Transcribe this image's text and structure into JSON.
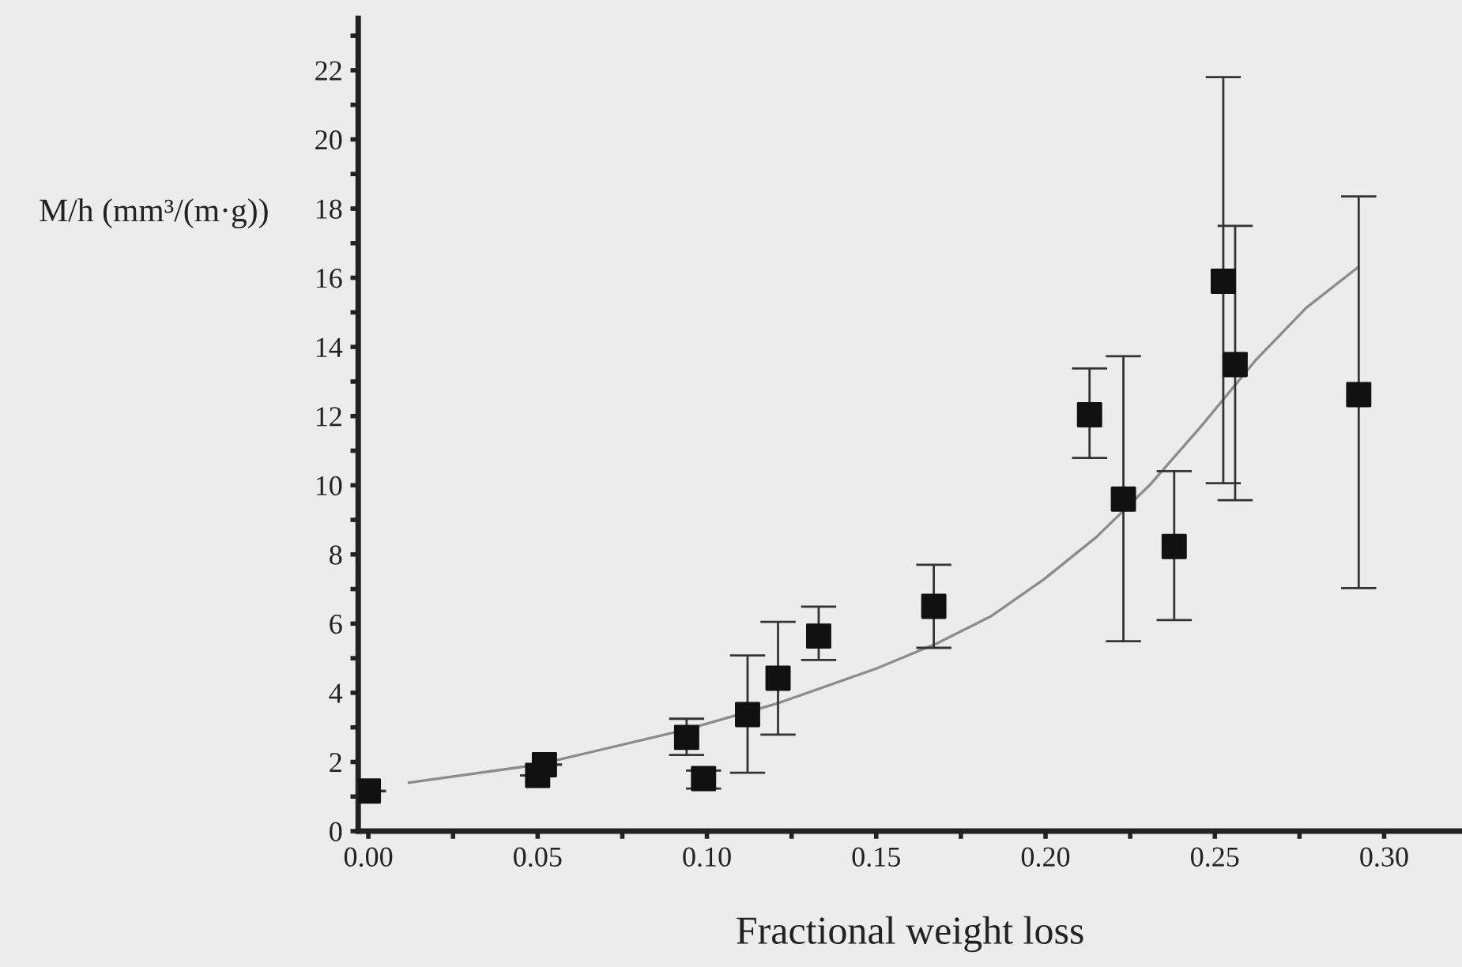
{
  "chart_data": {
    "type": "scatter",
    "xlabel": "Fractional weight loss",
    "ylabel": "M/h (mm³/(m·g))",
    "xlim": [
      -0.003,
      0.323
    ],
    "ylim": [
      0,
      23.5
    ],
    "xticks": [
      {
        "value": 0,
        "label": "0.00"
      },
      {
        "value": 0.025,
        "label": null
      },
      {
        "value": 0.05,
        "label": "0.05"
      },
      {
        "value": 0.075,
        "label": null
      },
      {
        "value": 0.1,
        "label": "0.10"
      },
      {
        "value": 0.125,
        "label": null
      },
      {
        "value": 0.15,
        "label": "0.15"
      },
      {
        "value": 0.175,
        "label": null
      },
      {
        "value": 0.2,
        "label": "0.20"
      },
      {
        "value": 0.225,
        "label": null
      },
      {
        "value": 0.25,
        "label": "0.25"
      },
      {
        "value": 0.275,
        "label": null
      },
      {
        "value": 0.3,
        "label": "0.30"
      }
    ],
    "yticks": [
      0,
      {
        "value": 1,
        "label": null
      },
      2,
      {
        "value": 3,
        "label": null
      },
      4,
      {
        "value": 5,
        "label": null
      },
      6,
      {
        "value": 7,
        "label": null
      },
      8,
      {
        "value": 9,
        "label": null
      },
      10,
      {
        "value": 11,
        "label": null
      },
      12,
      {
        "value": 13,
        "label": null
      },
      14,
      {
        "value": 15,
        "label": null
      },
      16,
      {
        "value": 17,
        "label": null
      },
      18,
      {
        "value": 19,
        "label": null
      },
      20,
      {
        "value": 21,
        "label": null
      },
      22,
      {
        "value": 23,
        "label": null
      }
    ],
    "grid": false,
    "legend": false,
    "series": [
      {
        "marker": "square",
        "color": "#111111",
        "x": [
          0.0,
          0.05,
          0.052,
          0.094,
          0.099,
          0.112,
          0.121,
          0.133,
          0.167,
          0.213,
          0.223,
          0.238,
          0.2525,
          0.256,
          0.2925
        ],
        "values": [
          1.16,
          1.61,
          1.92,
          2.71,
          1.52,
          3.37,
          4.42,
          5.64,
          6.5,
          12.04,
          9.6,
          8.23,
          15.9,
          13.49,
          12.62
        ],
        "errors": [
          null,
          null,
          null,
          [
            2.2,
            3.25
          ],
          [
            1.23,
            1.75
          ],
          [
            1.69,
            5.08
          ],
          [
            2.79,
            6.05
          ],
          [
            4.95,
            6.49
          ],
          [
            5.3,
            7.7
          ],
          [
            10.79,
            13.38
          ],
          [
            5.49,
            13.73
          ],
          [
            6.1,
            10.41
          ],
          [
            10.06,
            21.8
          ],
          [
            9.57,
            17.5
          ],
          [
            7.03,
            18.35
          ]
        ]
      },
      {
        "type": "line",
        "marker": "none",
        "line_style": "solid",
        "color": "#8c8c8c",
        "x": [
          0.012,
          0.05,
          0.094,
          0.121,
          0.15,
          0.168,
          0.184,
          0.1995,
          0.215,
          0.231,
          0.246,
          0.262,
          0.277,
          0.292
        ],
        "values": [
          1.4,
          1.92,
          2.94,
          3.7,
          4.7,
          5.43,
          6.22,
          7.28,
          8.5,
          10.03,
          11.71,
          13.61,
          15.13,
          16.28
        ]
      }
    ]
  }
}
